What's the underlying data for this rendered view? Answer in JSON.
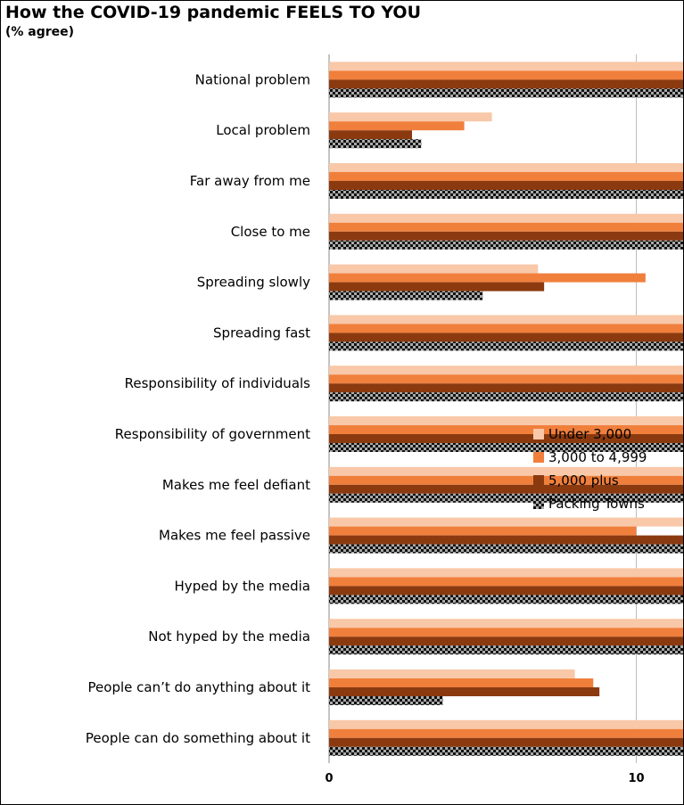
{
  "chart_data": {
    "type": "bar",
    "orientation": "horizontal",
    "title": "How the COVID-19 pandemic FEELS TO YOU",
    "subtitle": "(% agree)",
    "xlabel": "",
    "ylabel": "",
    "xlim": [
      0,
      90
    ],
    "xticks": [
      "0",
      "10",
      "20",
      "30",
      "40",
      "50",
      "60",
      "70",
      "80",
      "90"
    ],
    "grid": true,
    "legend_position": "right",
    "categories": [
      "National problem",
      "Local problem",
      "Far away from me",
      "Close to me",
      "Spreading slowly",
      "Spreading fast",
      "Responsibility of individuals",
      "Responsibility of government",
      "Makes me feel defiant",
      "Makes me feel passive",
      "Hyped by the media",
      "Not hyped by the media",
      "People can’t do anything about it",
      "People can do something about it"
    ],
    "series": [
      {
        "name": "Under 3,000",
        "color": "#f8c8a8",
        "pattern": "solid",
        "values": [
          70,
          5.3,
          20,
          39,
          6.8,
          62,
          41.5,
          19,
          22.8,
          13,
          45,
          29.3,
          8,
          69
        ]
      },
      {
        "name": "3,000 to 4,999",
        "color": "#f07f3c",
        "pattern": "solid",
        "values": [
          70,
          4.4,
          23.3,
          39,
          10.3,
          60.5,
          45.7,
          16,
          25.6,
          10,
          49.3,
          27.4,
          8.6,
          66
        ]
      },
      {
        "name": "5,000 plus",
        "color": "#8b3a10",
        "pattern": "solid",
        "values": [
          70,
          2.7,
          23.7,
          42.8,
          7,
          60.6,
          41.2,
          16,
          26.8,
          13.3,
          41,
          29.6,
          8.8,
          69
        ]
      },
      {
        "name": "Packing Towns",
        "color": "#111111",
        "pattern": "checker",
        "values": [
          84.3,
          3,
          21,
          29.2,
          5,
          76.5,
          25.9,
          22,
          18.9,
          12,
          24.5,
          34.3,
          3.7,
          78.7
        ]
      }
    ]
  }
}
